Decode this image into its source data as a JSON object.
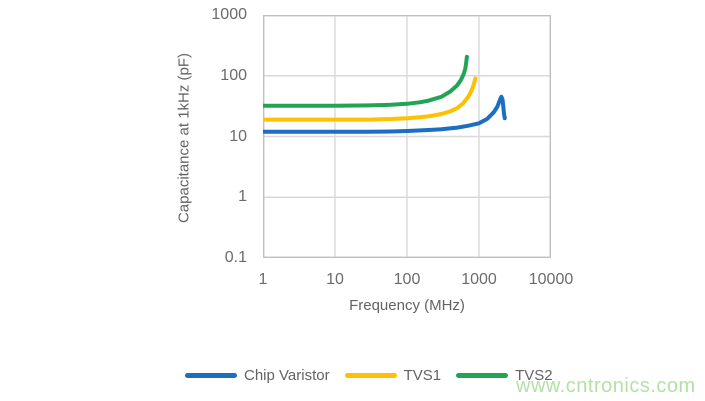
{
  "watermark": {
    "text": "www.cntronics.com",
    "color": "#a6db97"
  },
  "chart_data": {
    "type": "line",
    "title": "",
    "xlabel": "Frequency (MHz)",
    "ylabel": "Capacitance at 1kHz (pF)",
    "x_scale": "log",
    "y_scale": "log",
    "xlim": [
      1,
      10000
    ],
    "ylim": [
      0.1,
      1000
    ],
    "x_ticks": [
      1,
      10,
      100,
      1000,
      10000
    ],
    "x_tick_labels": [
      "1",
      "10",
      "100",
      "1000",
      "10000"
    ],
    "y_ticks": [
      1000,
      100,
      10,
      1,
      0.1
    ],
    "y_tick_labels": [
      "1000",
      "100",
      "10",
      "1",
      "0.1"
    ],
    "grid": true,
    "grid_color": "#d9d9d9",
    "border_color": "#bfbfbf",
    "text_color": "#636363",
    "legend_position": "bottom",
    "series": [
      {
        "name": "Chip Varistor",
        "color": "#1b6ec2",
        "points": [
          [
            1,
            12
          ],
          [
            3,
            12
          ],
          [
            10,
            12
          ],
          [
            30,
            12
          ],
          [
            60,
            12.1
          ],
          [
            100,
            12.3
          ],
          [
            200,
            12.8
          ],
          [
            300,
            13.2
          ],
          [
            500,
            14
          ],
          [
            700,
            15
          ],
          [
            1000,
            16.5
          ],
          [
            1300,
            19.5
          ],
          [
            1600,
            25
          ],
          [
            1800,
            31
          ],
          [
            1950,
            40
          ],
          [
            2050,
            45
          ],
          [
            2120,
            41
          ],
          [
            2180,
            30
          ],
          [
            2230,
            23
          ],
          [
            2280,
            20
          ]
        ]
      },
      {
        "name": "TVS1",
        "color": "#ffc000",
        "points": [
          [
            1,
            19
          ],
          [
            3,
            19
          ],
          [
            10,
            19
          ],
          [
            30,
            19
          ],
          [
            60,
            19.4
          ],
          [
            100,
            20
          ],
          [
            150,
            20.7
          ],
          [
            200,
            21.5
          ],
          [
            300,
            23.5
          ],
          [
            400,
            26
          ],
          [
            500,
            29.5
          ],
          [
            600,
            35
          ],
          [
            700,
            44
          ],
          [
            780,
            55
          ],
          [
            840,
            70
          ],
          [
            890,
            90
          ]
        ]
      },
      {
        "name": "TVS2",
        "color": "#23a455",
        "points": [
          [
            1,
            32
          ],
          [
            3,
            32
          ],
          [
            10,
            32
          ],
          [
            30,
            32.5
          ],
          [
            60,
            33.2
          ],
          [
            100,
            34.5
          ],
          [
            150,
            36.5
          ],
          [
            200,
            39
          ],
          [
            300,
            45
          ],
          [
            400,
            55
          ],
          [
            500,
            70
          ],
          [
            560,
            85
          ],
          [
            610,
            105
          ],
          [
            645,
            130
          ],
          [
            665,
            165
          ],
          [
            680,
            205
          ]
        ]
      }
    ]
  }
}
